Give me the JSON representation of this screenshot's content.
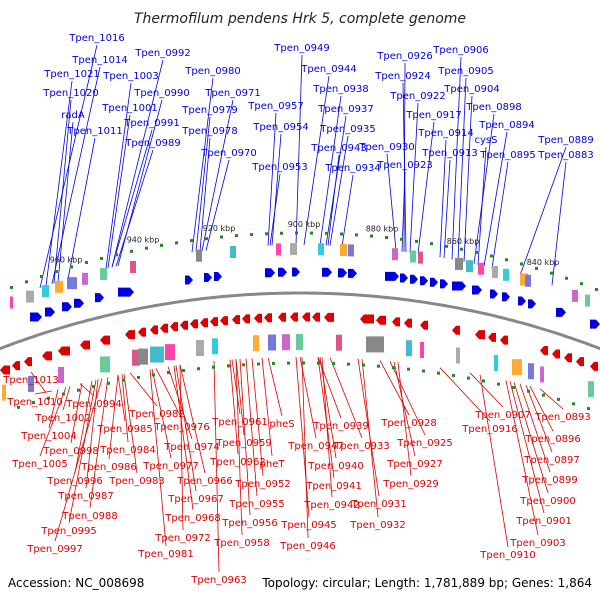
{
  "title": "Thermofilum pendens Hrk 5, complete genome",
  "footer": {
    "accession": "Accession: NC_008698",
    "summary": "Topology: circular; Length: 1,781,889 bp; Genes: 1,864"
  },
  "colors": {
    "forward": "#0000dd",
    "reverse": "#dd0000",
    "backbone": "#888888",
    "tick": "#228822"
  },
  "ruler": [
    "960 kbp",
    "940 kbp",
    "920 kbp",
    "900 kbp",
    "880 kbp",
    "860 kbp",
    "840 kbp"
  ],
  "forward_labels": [
    "Tpen_1016",
    "Tpen_1014",
    "Tpen_1021",
    "Tpen_1020",
    "radA",
    "Tpen_1011",
    "Tpen_0992",
    "Tpen_1003",
    "Tpen_1001",
    "Tpen_0990",
    "Tpen_0991",
    "Tpen_0989",
    "Tpen_0980",
    "Tpen_0979",
    "Tpen_0971",
    "Tpen_0978",
    "Tpen_0970",
    "Tpen_0949",
    "Tpen_0944",
    "Tpen_0957",
    "Tpen_0954",
    "Tpen_0938",
    "Tpen_0937",
    "Tpen_0935",
    "Tpen_0953",
    "Tpen_0943",
    "Tpen_0934",
    "Tpen_0926",
    "Tpen_0924",
    "Tpen_0922",
    "Tpen_0917",
    "Tpen_0930",
    "Tpen_0914",
    "Tpen_0923",
    "Tpen_0913",
    "Tpen_0906",
    "Tpen_0905",
    "Tpen_0904",
    "Tpen_0898",
    "Tpen_0894",
    "cysS",
    "Tpen_0895",
    "Tpen_0889",
    "Tpen_0883"
  ],
  "reverse_labels": [
    "Tpen_1013",
    "Tpen_1010",
    "Tpen_0994",
    "Tpen_1002",
    "Tpen_1004",
    "Tpen_0998",
    "Tpen_1005",
    "Tpen_0996",
    "Tpen_0987",
    "Tpen_0988",
    "Tpen_0995",
    "Tpen_0997",
    "Tpen_0985",
    "Tpen_0982",
    "Tpen_0986",
    "Tpen_0984",
    "Tpen_0983",
    "Tpen_0981",
    "Tpen_0976",
    "Tpen_0977",
    "Tpen_0974",
    "Tpen_0966",
    "Tpen_0967",
    "Tpen_0968",
    "Tpen_0972",
    "Tpen_0963",
    "Tpen_0961",
    "Tpen_0959",
    "Tpen_0962",
    "Tpen_0958",
    "Tpen_0956",
    "Tpen_0955",
    "pheS",
    "pheT",
    "Tpen_0952",
    "Tpen_0947",
    "Tpen_0945",
    "Tpen_0946",
    "Tpen_0939",
    "Tpen_0940",
    "Tpen_0941",
    "Tpen_0942",
    "Tpen_0933",
    "Tpen_0932",
    "Tpen_0931",
    "Tpen_0928",
    "Tpen_0925",
    "Tpen_0927",
    "Tpen_0929",
    "Tpen_0916",
    "Tpen_0907",
    "Tpen_0893",
    "Tpen_0896",
    "Tpen_0897",
    "Tpen_0899",
    "Tpen_0900",
    "Tpen_0901",
    "Tpen_0903",
    "Tpen_0910"
  ]
}
